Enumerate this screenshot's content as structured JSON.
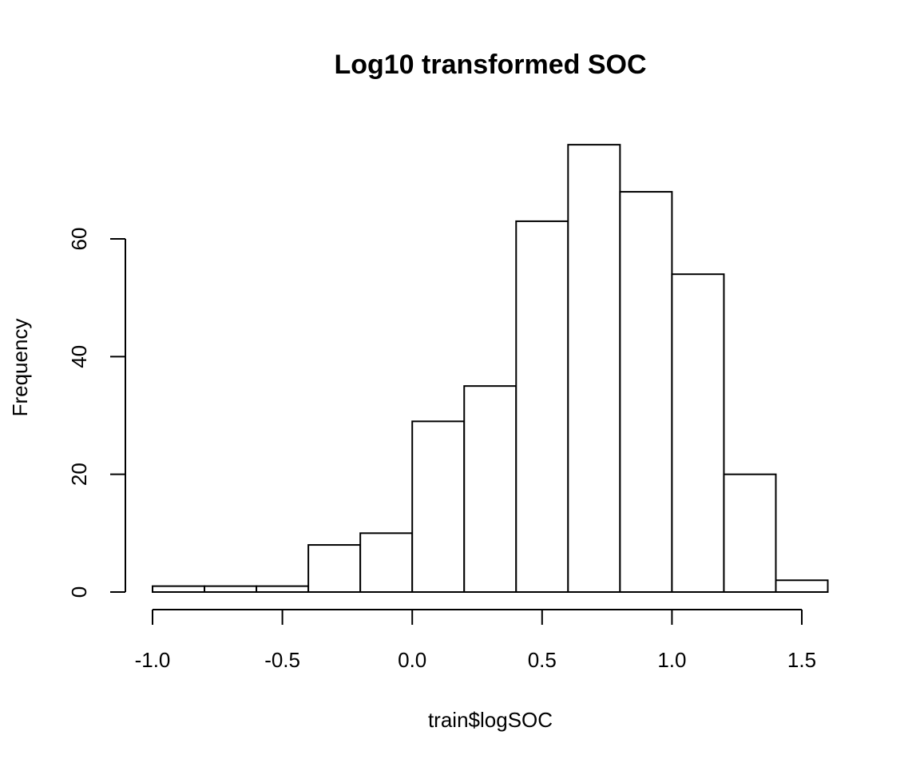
{
  "chart_data": {
    "type": "bar",
    "title": "Log10 transformed SOC",
    "xlabel": "train$logSOC",
    "ylabel": "Frequency",
    "bins": [
      {
        "x0": -1.0,
        "x1": -0.8,
        "count": 1
      },
      {
        "x0": -0.8,
        "x1": -0.6,
        "count": 1
      },
      {
        "x0": -0.6,
        "x1": -0.4,
        "count": 1
      },
      {
        "x0": -0.4,
        "x1": -0.2,
        "count": 8
      },
      {
        "x0": -0.2,
        "x1": 0.0,
        "count": 10
      },
      {
        "x0": 0.0,
        "x1": 0.2,
        "count": 29
      },
      {
        "x0": 0.2,
        "x1": 0.4,
        "count": 35
      },
      {
        "x0": 0.4,
        "x1": 0.6,
        "count": 63
      },
      {
        "x0": 0.6,
        "x1": 0.8,
        "count": 76
      },
      {
        "x0": 0.8,
        "x1": 1.0,
        "count": 68
      },
      {
        "x0": 1.0,
        "x1": 1.2,
        "count": 54
      },
      {
        "x0": 1.2,
        "x1": 1.4,
        "count": 20
      },
      {
        "x0": 1.4,
        "x1": 1.6,
        "count": 2
      }
    ],
    "xticks": [
      -1.0,
      -0.5,
      0.0,
      0.5,
      1.0,
      1.5
    ],
    "xtick_labels": [
      "-1.0",
      "-0.5",
      "0.0",
      "0.5",
      "1.0",
      "1.5"
    ],
    "yticks": [
      0,
      20,
      40,
      60
    ],
    "ytick_labels": [
      "0",
      "20",
      "40",
      "60"
    ],
    "xlim": [
      -1.0,
      1.6
    ],
    "ylim": [
      0,
      76
    ],
    "grid": false,
    "legend": "none"
  }
}
